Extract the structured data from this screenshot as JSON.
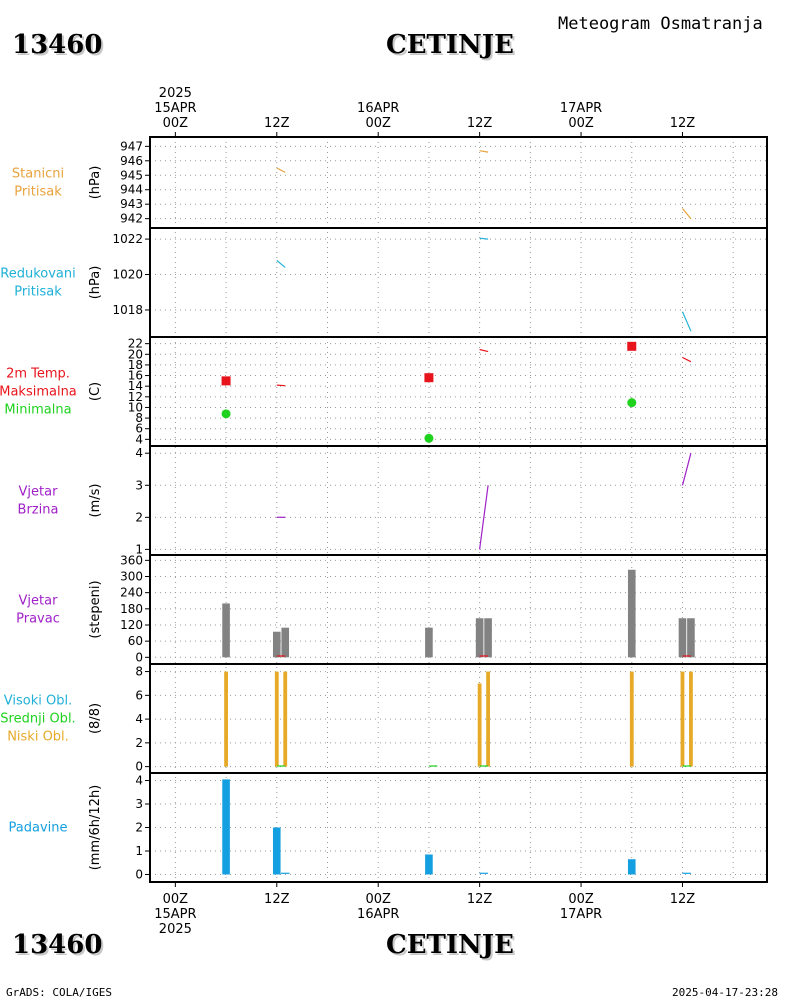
{
  "header": {
    "station_id": "13460",
    "city": "CETINJE",
    "title": "Meteogram Osmatranja"
  },
  "footer": {
    "station_id": "13460",
    "city": "CETINJE",
    "credit": "GrADS: COLA/IGES",
    "timestamp": "2025-04-17-23:28"
  },
  "colors": {
    "orange": "#e8a23c",
    "cyan": "#1fb0d8",
    "red": "#e8141c",
    "green": "#1ed21e",
    "purple": "#a020c8",
    "gray": "#828282",
    "cloud": "#e6aa28",
    "blue": "#14a0e0"
  },
  "chart_data": {
    "type": "meteogram",
    "x_axis": {
      "top_labels": [
        {
          "t": 0,
          "lines": [
            "2025",
            "15APR",
            "00Z"
          ]
        },
        {
          "t": 12,
          "lines": [
            "12Z"
          ]
        },
        {
          "t": 24,
          "lines": [
            "16APR",
            "00Z"
          ]
        },
        {
          "t": 36,
          "lines": [
            "12Z"
          ]
        },
        {
          "t": 48,
          "lines": [
            "17APR",
            "00Z"
          ]
        },
        {
          "t": 60,
          "lines": [
            "12Z"
          ]
        }
      ],
      "bottom_labels": [
        {
          "t": 0,
          "lines": [
            "00Z",
            "15APR",
            "2025"
          ]
        },
        {
          "t": 12,
          "lines": [
            "12Z"
          ]
        },
        {
          "t": 24,
          "lines": [
            "00Z",
            "16APR"
          ]
        },
        {
          "t": 36,
          "lines": [
            "12Z"
          ]
        },
        {
          "t": 48,
          "lines": [
            "00Z",
            "17APR"
          ]
        },
        {
          "t": 60,
          "lines": [
            "12Z"
          ]
        }
      ],
      "range_hours": [
        -3,
        70
      ],
      "grid": true
    },
    "panels": [
      {
        "id": "pressure-station",
        "label_lines": [
          {
            "text": "Stanicni",
            "color": "orange"
          },
          {
            "text": "Pritisak",
            "color": "orange"
          }
        ],
        "unit": "(hPa)",
        "ylim": [
          941.7,
          947.3
        ],
        "ticks": [
          942,
          943,
          944,
          945,
          946,
          947
        ],
        "lines": [
          {
            "color": "orange",
            "points": [
              [
                12,
                945.5
              ],
              [
                13,
                945.2
              ]
            ]
          },
          {
            "color": "orange",
            "points": [
              [
                36,
                946.7
              ],
              [
                37,
                946.6
              ]
            ]
          },
          {
            "color": "orange",
            "points": [
              [
                60,
                942.7
              ],
              [
                61,
                942.0
              ]
            ]
          }
        ]
      },
      {
        "id": "pressure-reduced",
        "label_lines": [
          {
            "text": "Redukovani",
            "color": "cyan"
          },
          {
            "text": "Pritisak",
            "color": "cyan"
          }
        ],
        "unit": "(hPa)",
        "ylim": [
          1016.7,
          1022.4
        ],
        "ticks": [
          1018,
          1020,
          1022
        ],
        "lines": [
          {
            "color": "cyan",
            "points": [
              [
                12,
                1020.8
              ],
              [
                13,
                1020.4
              ]
            ]
          },
          {
            "color": "cyan",
            "points": [
              [
                36,
                1022.05
              ],
              [
                37,
                1022.0
              ]
            ]
          },
          {
            "color": "cyan",
            "points": [
              [
                60,
                1017.9
              ],
              [
                61,
                1016.8
              ]
            ]
          }
        ]
      },
      {
        "id": "temperature",
        "label_lines": [
          {
            "text": "2m Temp.",
            "color": "red"
          },
          {
            "text": "Maksimalna",
            "color": "red"
          },
          {
            "text": "Minimalna",
            "color": "green"
          }
        ],
        "unit": "(C)",
        "ylim": [
          3.5,
          22.5
        ],
        "ticks": [
          4,
          6,
          8,
          10,
          12,
          14,
          16,
          18,
          20,
          22
        ],
        "lines": [
          {
            "color": "red",
            "points": [
              [
                12,
                14.2
              ],
              [
                13,
                14.1
              ]
            ]
          },
          {
            "color": "red",
            "points": [
              [
                36,
                20.9
              ],
              [
                37,
                20.5
              ]
            ]
          },
          {
            "color": "red",
            "points": [
              [
                60,
                19.4
              ],
              [
                61,
                18.6
              ]
            ]
          }
        ],
        "markers": [
          {
            "shape": "square",
            "color": "red",
            "t": 6,
            "v": 15
          },
          {
            "shape": "square",
            "color": "red",
            "t": 30,
            "v": 15.6
          },
          {
            "shape": "square",
            "color": "red",
            "t": 54,
            "v": 21.5
          },
          {
            "shape": "circle",
            "color": "green",
            "t": 6,
            "v": 8.8
          },
          {
            "shape": "circle",
            "color": "green",
            "t": 30,
            "v": 4.2
          },
          {
            "shape": "circle",
            "color": "green",
            "t": 54,
            "v": 10.9
          }
        ]
      },
      {
        "id": "wind-speed",
        "label_lines": [
          {
            "text": "Vjetar",
            "color": "purple"
          },
          {
            "text": "Brzina",
            "color": "purple"
          }
        ],
        "unit": "(m/s)",
        "ylim": [
          0.95,
          4.1
        ],
        "ticks": [
          1,
          2,
          3,
          4
        ],
        "lines": [
          {
            "color": "purple",
            "points": [
              [
                12,
                2.0
              ],
              [
                13,
                2.0
              ]
            ]
          },
          {
            "color": "purple",
            "points": [
              [
                36,
                1.0
              ],
              [
                37,
                3.0
              ]
            ]
          },
          {
            "color": "purple",
            "points": [
              [
                60,
                3.0
              ],
              [
                61,
                4.0
              ]
            ]
          }
        ]
      },
      {
        "id": "wind-direction",
        "label_lines": [
          {
            "text": "Vjetar",
            "color": "purple"
          },
          {
            "text": "Pravac",
            "color": "purple"
          }
        ],
        "unit": "(stepeni)",
        "ylim": [
          -10,
          365
        ],
        "ticks": [
          0,
          60,
          120,
          180,
          240,
          300,
          360
        ],
        "bars": [
          {
            "t": 6,
            "v": 200,
            "color": "gray"
          },
          {
            "t": 12,
            "v": 95,
            "color": "gray"
          },
          {
            "t": 13,
            "v": 110,
            "color": "gray"
          },
          {
            "t": 30,
            "v": 110,
            "color": "gray"
          },
          {
            "t": 36,
            "v": 145,
            "color": "gray"
          },
          {
            "t": 37,
            "v": 145,
            "color": "gray"
          },
          {
            "t": 54,
            "v": 325,
            "color": "gray"
          },
          {
            "t": 60,
            "v": 145,
            "color": "gray"
          },
          {
            "t": 61,
            "v": 145,
            "color": "gray"
          }
        ],
        "bar_width_h": 0.9,
        "lines": [
          {
            "color": "red",
            "points": [
              [
                12,
                5
              ],
              [
                13,
                5
              ]
            ]
          },
          {
            "color": "red",
            "points": [
              [
                36,
                5
              ],
              [
                37,
                5
              ]
            ]
          },
          {
            "color": "red",
            "points": [
              [
                60,
                5
              ],
              [
                61,
                5
              ]
            ]
          }
        ]
      },
      {
        "id": "clouds",
        "label_lines": [
          {
            "text": "Visoki Obl.",
            "color": "cyan"
          },
          {
            "text": "Srednji Obl.",
            "color": "green"
          },
          {
            "text": "Niski Obl.",
            "color": "cloud"
          }
        ],
        "unit": "(8/8)",
        "ylim": [
          -0.2,
          8.3
        ],
        "ticks": [
          0,
          2,
          4,
          6,
          8
        ],
        "bars": [
          {
            "t": 6,
            "v": 8,
            "color": "cloud"
          },
          {
            "t": 12,
            "v": 8,
            "color": "cloud"
          },
          {
            "t": 13,
            "v": 8,
            "color": "cloud"
          },
          {
            "t": 36,
            "v": 7,
            "color": "cloud"
          },
          {
            "t": 37,
            "v": 8,
            "color": "cloud"
          },
          {
            "t": 54,
            "v": 8,
            "color": "cloud"
          },
          {
            "t": 60,
            "v": 8,
            "color": "cloud"
          },
          {
            "t": 61,
            "v": 8,
            "color": "cloud"
          }
        ],
        "bar_width_h": 0.45,
        "lines": [
          {
            "color": "green",
            "points": [
              [
                12,
                0.05
              ],
              [
                13,
                0.05
              ]
            ]
          },
          {
            "color": "green",
            "points": [
              [
                30,
                0.05
              ],
              [
                31,
                0.05
              ]
            ]
          },
          {
            "color": "green",
            "points": [
              [
                36,
                0.05
              ],
              [
                37,
                0.05
              ]
            ]
          },
          {
            "color": "green",
            "points": [
              [
                60,
                0.05
              ],
              [
                61,
                0.05
              ]
            ]
          }
        ]
      },
      {
        "id": "precipitation",
        "label_lines": [
          {
            "text": "Padavine",
            "color": "blue"
          }
        ],
        "unit": "(mm/6h/12h)",
        "ylim": [
          -0.15,
          4.15
        ],
        "ticks": [
          0,
          1,
          2,
          3,
          4
        ],
        "bars": [
          {
            "t": 6,
            "v": 4.05,
            "color": "blue"
          },
          {
            "t": 12,
            "v": 2.0,
            "color": "blue"
          },
          {
            "t": 30,
            "v": 0.85,
            "color": "blue"
          },
          {
            "t": 54,
            "v": 0.65,
            "color": "blue"
          }
        ],
        "bar_width_h": 0.9,
        "lines": [
          {
            "color": "blue",
            "points": [
              [
                12.5,
                0.05
              ],
              [
                13.5,
                0.05
              ]
            ]
          },
          {
            "color": "blue",
            "points": [
              [
                36,
                0.05
              ],
              [
                37,
                0.05
              ]
            ]
          },
          {
            "color": "blue",
            "points": [
              [
                60,
                0.05
              ],
              [
                61,
                0.05
              ]
            ]
          }
        ]
      }
    ]
  }
}
